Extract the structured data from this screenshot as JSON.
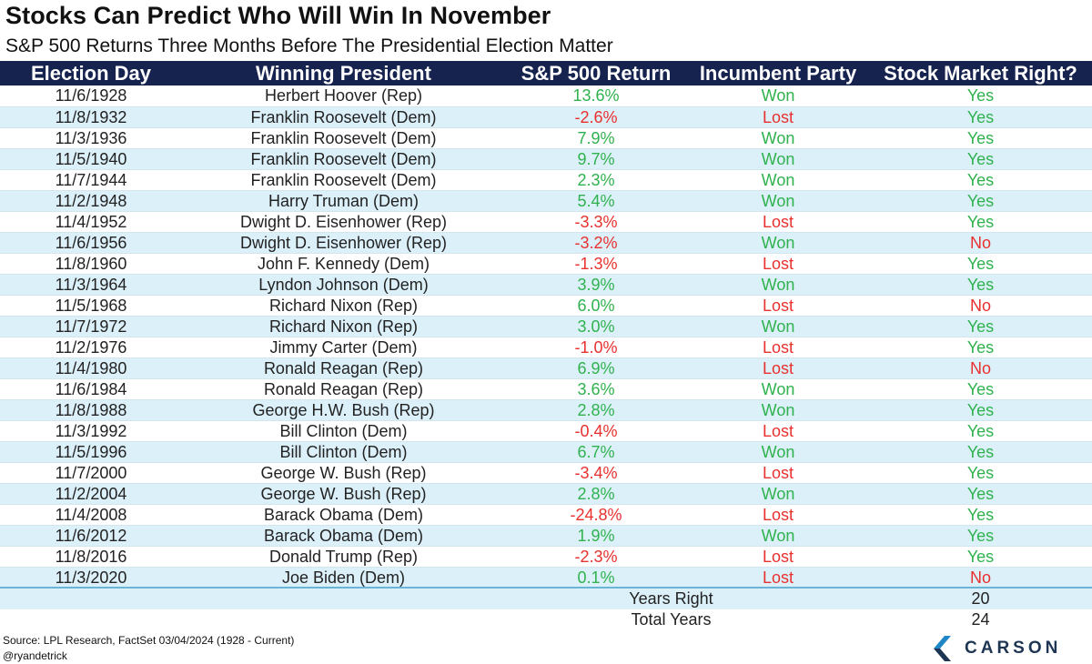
{
  "title": "Stocks Can Predict Who Will Win In November",
  "subtitle": "S&P 500 Returns Three Months Before The Presidential Election Matter",
  "colors": {
    "header_bg": "#16234f",
    "stripe": "#dcf0fa",
    "positive": "#2fb24e",
    "negative": "#e8312f"
  },
  "chart_data": {
    "type": "table",
    "columns": [
      "Election Day",
      "Winning President",
      "S&P 500 Return",
      "Incumbent Party",
      "Stock Market Right?"
    ],
    "rows": [
      [
        "11/6/1928",
        "Herbert Hoover (Rep)",
        "13.6%",
        "Won",
        "Yes"
      ],
      [
        "11/8/1932",
        "Franklin Roosevelt (Dem)",
        "-2.6%",
        "Lost",
        "Yes"
      ],
      [
        "11/3/1936",
        "Franklin Roosevelt (Dem)",
        "7.9%",
        "Won",
        "Yes"
      ],
      [
        "11/5/1940",
        "Franklin Roosevelt (Dem)",
        "9.7%",
        "Won",
        "Yes"
      ],
      [
        "11/7/1944",
        "Franklin Roosevelt (Dem)",
        "2.3%",
        "Won",
        "Yes"
      ],
      [
        "11/2/1948",
        "Harry Truman (Dem)",
        "5.4%",
        "Won",
        "Yes"
      ],
      [
        "11/4/1952",
        "Dwight D. Eisenhower (Rep)",
        "-3.3%",
        "Lost",
        "Yes"
      ],
      [
        "11/6/1956",
        "Dwight D. Eisenhower (Rep)",
        "-3.2%",
        "Won",
        "No"
      ],
      [
        "11/8/1960",
        "John F. Kennedy (Dem)",
        "-1.3%",
        "Lost",
        "Yes"
      ],
      [
        "11/3/1964",
        "Lyndon Johnson (Dem)",
        "3.9%",
        "Won",
        "Yes"
      ],
      [
        "11/5/1968",
        "Richard Nixon (Rep)",
        "6.0%",
        "Lost",
        "No"
      ],
      [
        "11/7/1972",
        "Richard Nixon (Rep)",
        "3.0%",
        "Won",
        "Yes"
      ],
      [
        "11/2/1976",
        "Jimmy Carter (Dem)",
        "-1.0%",
        "Lost",
        "Yes"
      ],
      [
        "11/4/1980",
        "Ronald Reagan (Rep)",
        "6.9%",
        "Lost",
        "No"
      ],
      [
        "11/6/1984",
        "Ronald Reagan (Rep)",
        "3.6%",
        "Won",
        "Yes"
      ],
      [
        "11/8/1988",
        "George H.W. Bush (Rep)",
        "2.8%",
        "Won",
        "Yes"
      ],
      [
        "11/3/1992",
        "Bill Clinton (Dem)",
        "-0.4%",
        "Lost",
        "Yes"
      ],
      [
        "11/5/1996",
        "Bill Clinton (Dem)",
        "6.7%",
        "Won",
        "Yes"
      ],
      [
        "11/7/2000",
        "George W. Bush (Rep)",
        "-3.4%",
        "Lost",
        "Yes"
      ],
      [
        "11/2/2004",
        "George W. Bush (Rep)",
        "2.8%",
        "Won",
        "Yes"
      ],
      [
        "11/4/2008",
        "Barack Obama (Dem)",
        "-24.8%",
        "Lost",
        "Yes"
      ],
      [
        "11/6/2012",
        "Barack Obama (Dem)",
        "1.9%",
        "Won",
        "Yes"
      ],
      [
        "11/8/2016",
        "Donald Trump (Rep)",
        "-2.3%",
        "Lost",
        "Yes"
      ],
      [
        "11/3/2020",
        "Joe Biden (Dem)",
        "0.1%",
        "Lost",
        "No"
      ]
    ],
    "summary": [
      {
        "label": "Years Right",
        "value": "20"
      },
      {
        "label": "Total Years",
        "value": "24"
      }
    ]
  },
  "footer": {
    "source": "Source: LPL Research, FactSet 03/04/2024  (1928 - Current)",
    "handle": "@ryandetrick",
    "logo_text": "CARSON",
    "logo_icon": "carson-chevron-icon"
  }
}
